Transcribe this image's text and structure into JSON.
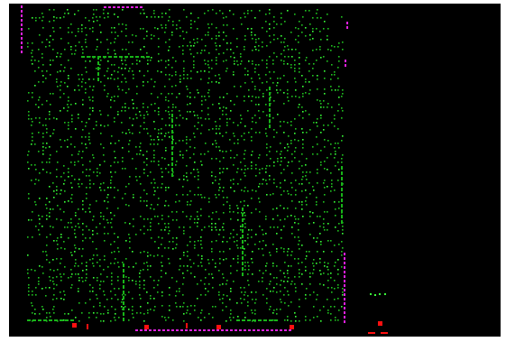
{
  "game": {
    "colors": {
      "background": "#000000",
      "frame": "#ffffff",
      "dots": "#20c020",
      "dots_bright": "#3aff3a",
      "walls": "#18b418",
      "border_markers": "#e020e0",
      "hazard_markers": "#ff1010"
    },
    "elements": {
      "dot_field": "green-dot-maze",
      "wall_segments": "green-dashed-walls",
      "border_markers": "magenta-dashed-edges",
      "hazard_markers": "red-enemy-markers",
      "side_pickup": "green-side-dots"
    }
  }
}
